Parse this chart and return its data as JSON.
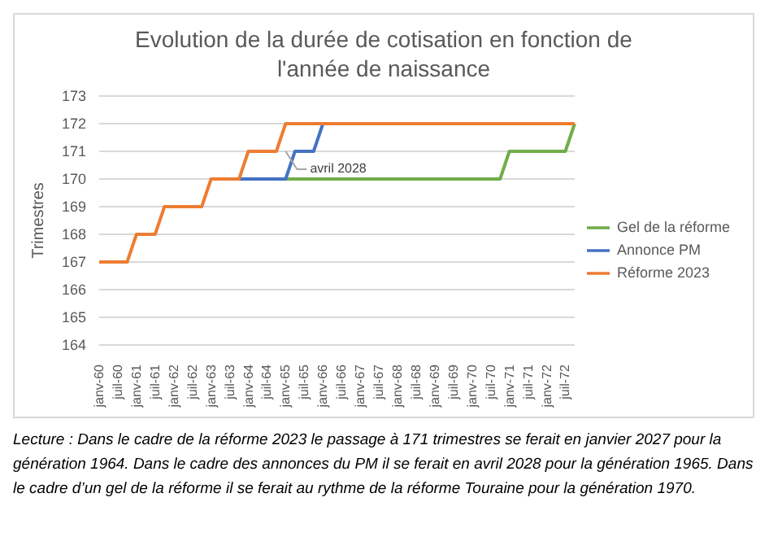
{
  "chart_data": {
    "type": "line",
    "title": "Evolution de la durée de cotisation en fonction de l'année de naissance",
    "ylabel": "Trimestres",
    "categories": [
      "janv-60",
      null,
      "juil-60",
      null,
      "janv-61",
      null,
      "juil-61",
      null,
      "janv-62",
      null,
      "juil-62",
      null,
      "janv-63",
      null,
      "juil-63",
      null,
      "janv-64",
      null,
      "juil-64",
      null,
      "janv-65",
      null,
      "juil-65",
      null,
      "janv-66",
      null,
      "juil-66",
      null,
      "janv-67",
      null,
      "juil-67",
      null,
      "janv-68",
      null,
      "juil-68",
      null,
      "janv-69",
      null,
      "juil-69",
      null,
      "janv-70",
      null,
      "juil-70",
      null,
      "janv-71",
      null,
      "juil-71",
      null,
      "janv-72",
      null,
      "juil-72",
      null
    ],
    "series": [
      {
        "name": "Gel de la réforme",
        "color": "#70ad47",
        "values": [
          null,
          null,
          null,
          null,
          null,
          null,
          null,
          null,
          null,
          null,
          null,
          null,
          null,
          null,
          null,
          null,
          null,
          null,
          null,
          null,
          170,
          170,
          170,
          170,
          170,
          170,
          170,
          170,
          170,
          170,
          170,
          170,
          170,
          170,
          170,
          170,
          170,
          170,
          170,
          170,
          170,
          170,
          170,
          170,
          171,
          171,
          171,
          171,
          171,
          171,
          171,
          172
        ]
      },
      {
        "name": "Annonce PM",
        "color": "#4472c4",
        "values": [
          null,
          null,
          null,
          null,
          null,
          null,
          null,
          null,
          null,
          null,
          null,
          null,
          null,
          null,
          null,
          170,
          170,
          170,
          170,
          170,
          170,
          171,
          171,
          171,
          172,
          null,
          null,
          null,
          null,
          null,
          null,
          null,
          null,
          null,
          null,
          null,
          null,
          null,
          null,
          null,
          null,
          null,
          null,
          null,
          null,
          null,
          null,
          null,
          null,
          null,
          null,
          null
        ]
      },
      {
        "name": "Réforme 2023",
        "color": "#ed7d31",
        "values": [
          167,
          167,
          167,
          167,
          168,
          168,
          168,
          169,
          169,
          169,
          169,
          169,
          170,
          170,
          170,
          170,
          171,
          171,
          171,
          171,
          172,
          172,
          172,
          172,
          172,
          172,
          172,
          172,
          172,
          172,
          172,
          172,
          172,
          172,
          172,
          172,
          172,
          172,
          172,
          172,
          172,
          172,
          172,
          172,
          172,
          172,
          172,
          172,
          172,
          172,
          172,
          172
        ]
      }
    ],
    "ylim": [
      164,
      173
    ],
    "yticks": [
      164,
      165,
      166,
      167,
      168,
      169,
      170,
      171,
      172,
      173
    ],
    "grid": "y",
    "legend": "right",
    "marker": "none",
    "line_style": "solid",
    "annotations": [
      {
        "text": "avril 2028",
        "x": "janv-65",
        "y": 171
      },
      "Lecture : Dans le cadre de la réforme 2023 le passage à 171 trimestres se ferait en janvier 2027 pour la génération 1964. Dans le cadre des annonces du PM il se ferait en avril 2028 pour la génération 1965. Dans le cadre d’un gel de la réforme il se ferait au rythme de la réforme Touraine pour la génération 1970."
    ]
  }
}
